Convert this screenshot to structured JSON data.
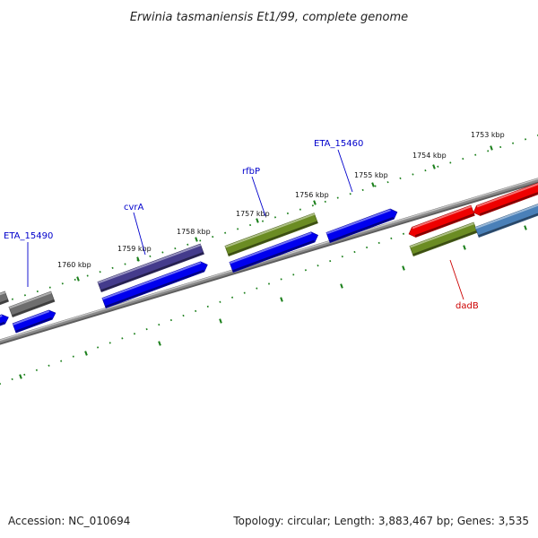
{
  "title": "Erwinia tasmaniensis Et1/99, complete genome",
  "footer": {
    "accession": "Accession: NC_010694",
    "topology": "Topology: circular; Length: 3,883,467 bp; Genes: 3,535"
  },
  "colors": {
    "backbone": "#8a8a8a",
    "ruler_ticks": "#1a7f1a",
    "gene_label_blue": "#0000cc",
    "gene_label_red": "#cc0000",
    "gray": "#6e6e6e",
    "blue": "#0000ee",
    "navy": "#443b8c",
    "olive": "#6b8c23",
    "red": "#ee0000",
    "steelblue": "#4a80b8"
  },
  "kbp_labels": [
    "1760 kbp",
    "1759 kbp",
    "1758 kbp",
    "1757 kbp",
    "1756 kbp",
    "1755 kbp",
    "1754 kbp",
    "1753 kbp"
  ],
  "gene_labels": [
    {
      "text": "ETA_15490",
      "color": "blue"
    },
    {
      "text": "cvrA",
      "color": "blue"
    },
    {
      "text": "rfbP",
      "color": "blue"
    },
    {
      "text": "ETA_15460",
      "color": "blue"
    },
    {
      "text": "dadB",
      "color": "red"
    }
  ],
  "features": [
    {
      "name": "gene-gray-left-1",
      "color": "gray"
    },
    {
      "name": "gene-gray-left-2",
      "color": "gray"
    },
    {
      "name": "gene-blue-left-1",
      "color": "blue"
    },
    {
      "name": "gene-blue-left-2",
      "color": "blue"
    },
    {
      "name": "gene-navy-cvrA",
      "color": "navy"
    },
    {
      "name": "gene-blue-cvrA-cds",
      "color": "blue"
    },
    {
      "name": "gene-olive-rfbP",
      "color": "olive"
    },
    {
      "name": "gene-blue-rfbP-cds",
      "color": "blue"
    },
    {
      "name": "gene-blue-ETA_15460",
      "color": "blue"
    },
    {
      "name": "gene-red-1",
      "color": "red"
    },
    {
      "name": "gene-red-2",
      "color": "red"
    },
    {
      "name": "gene-olive-dadB",
      "color": "olive"
    },
    {
      "name": "gene-steelblue-dadB",
      "color": "steelblue"
    }
  ]
}
